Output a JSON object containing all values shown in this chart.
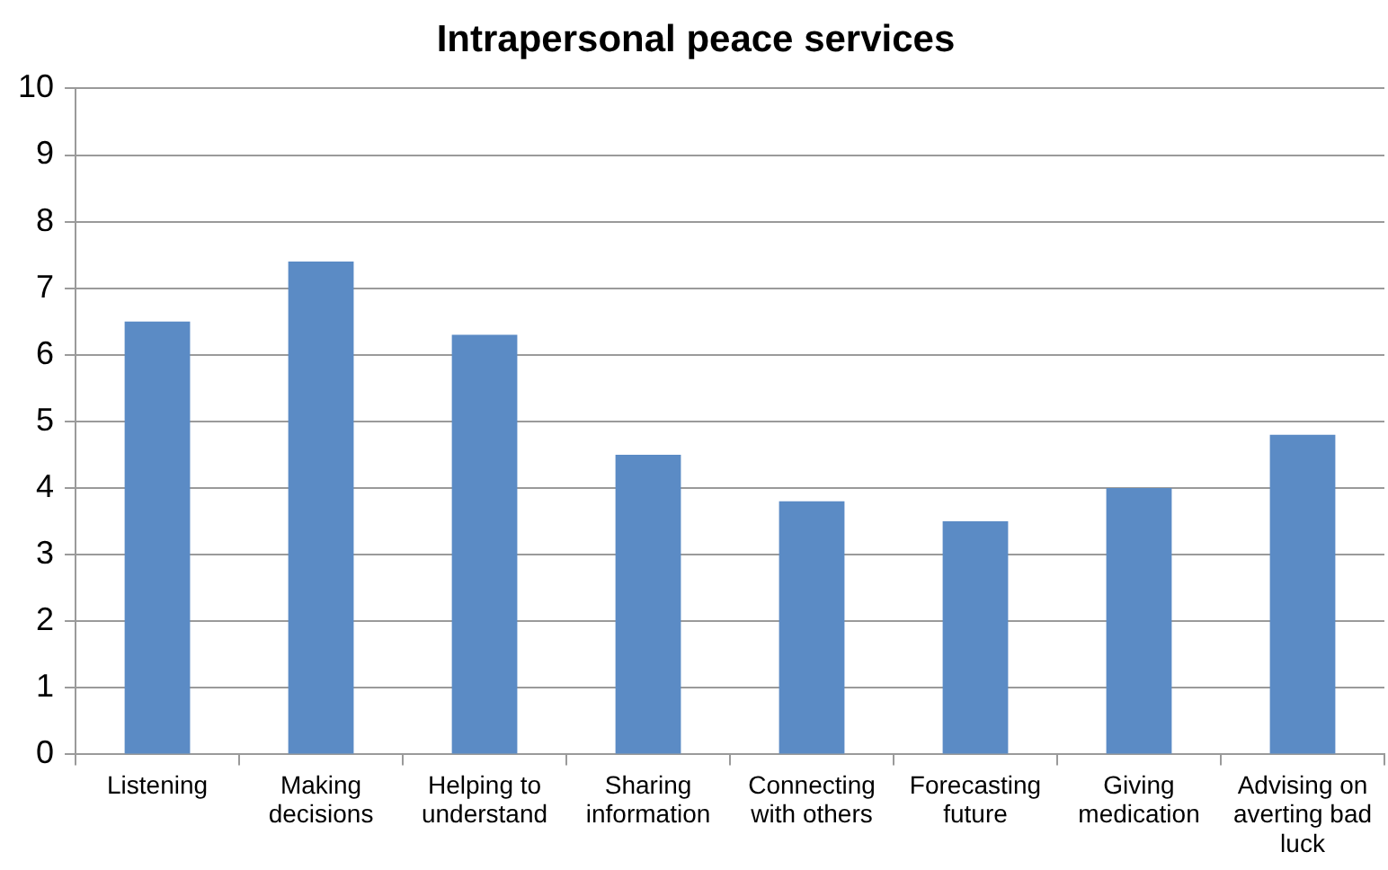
{
  "chart_data": {
    "type": "bar",
    "title": "Intrapersonal peace services",
    "categories": [
      "Listening",
      "Making decisions",
      "Helping to understand",
      "Sharing information",
      "Connecting with others",
      "Forecasting future",
      "Giving medication",
      "Advising on averting bad luck"
    ],
    "values": [
      6.5,
      7.4,
      6.3,
      4.5,
      3.8,
      3.5,
      4.0,
      4.8
    ],
    "color": "#5b8bc5",
    "ylim": [
      0,
      10
    ],
    "yticks": [
      0,
      1,
      2,
      3,
      4,
      5,
      6,
      7,
      8,
      9,
      10
    ],
    "grid": "y"
  }
}
